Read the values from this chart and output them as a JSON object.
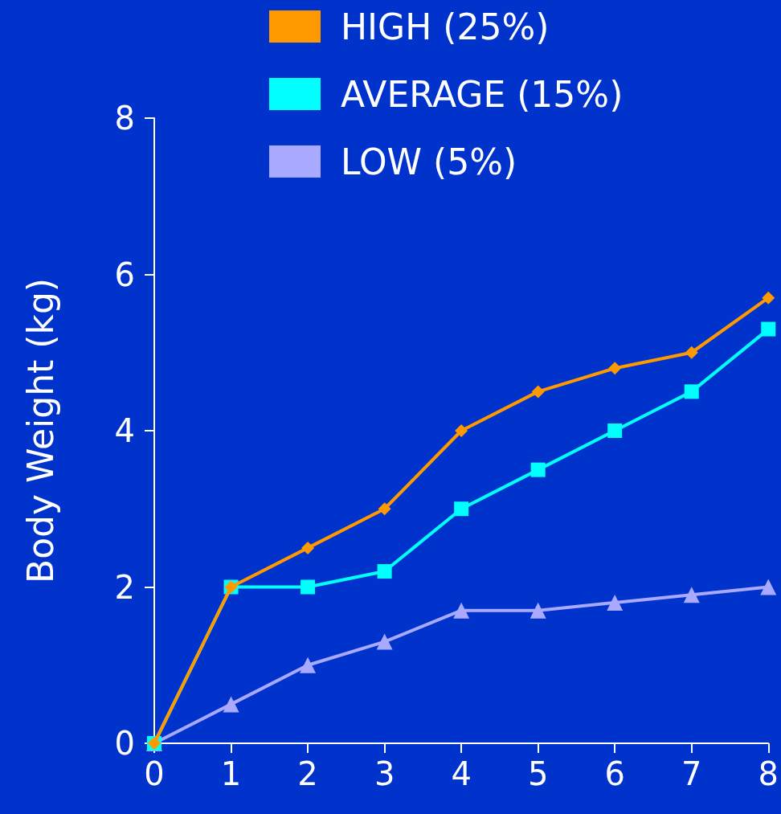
{
  "chart_data": {
    "type": "line",
    "ylabel": "Body Weight (kg)",
    "x": [
      0,
      1,
      2,
      3,
      4,
      5,
      6,
      7,
      8
    ],
    "series": [
      {
        "name": "HIGH (25%)",
        "color": "#ff9900",
        "marker": "diamond",
        "values": [
          0,
          2,
          2.5,
          3,
          4,
          4.5,
          4.8,
          5,
          5.7
        ]
      },
      {
        "name": "AVERAGE (15%)",
        "color": "#00ffff",
        "marker": "square",
        "values": [
          0,
          2,
          2,
          2.2,
          3,
          3.5,
          4,
          4.5,
          5.3
        ]
      },
      {
        "name": "LOW (5%)",
        "color": "#a9a9ff",
        "marker": "triangle",
        "values": [
          0,
          0.5,
          1,
          1.3,
          1.7,
          1.7,
          1.8,
          1.9,
          2
        ]
      }
    ],
    "xlim": [
      0,
      8
    ],
    "xticks": [
      0,
      1,
      2,
      3,
      4,
      5,
      6,
      7,
      8
    ],
    "ylim": [
      0,
      8
    ],
    "yticks": [
      0,
      2,
      4,
      6,
      8
    ],
    "grid": false,
    "legend": "top"
  }
}
